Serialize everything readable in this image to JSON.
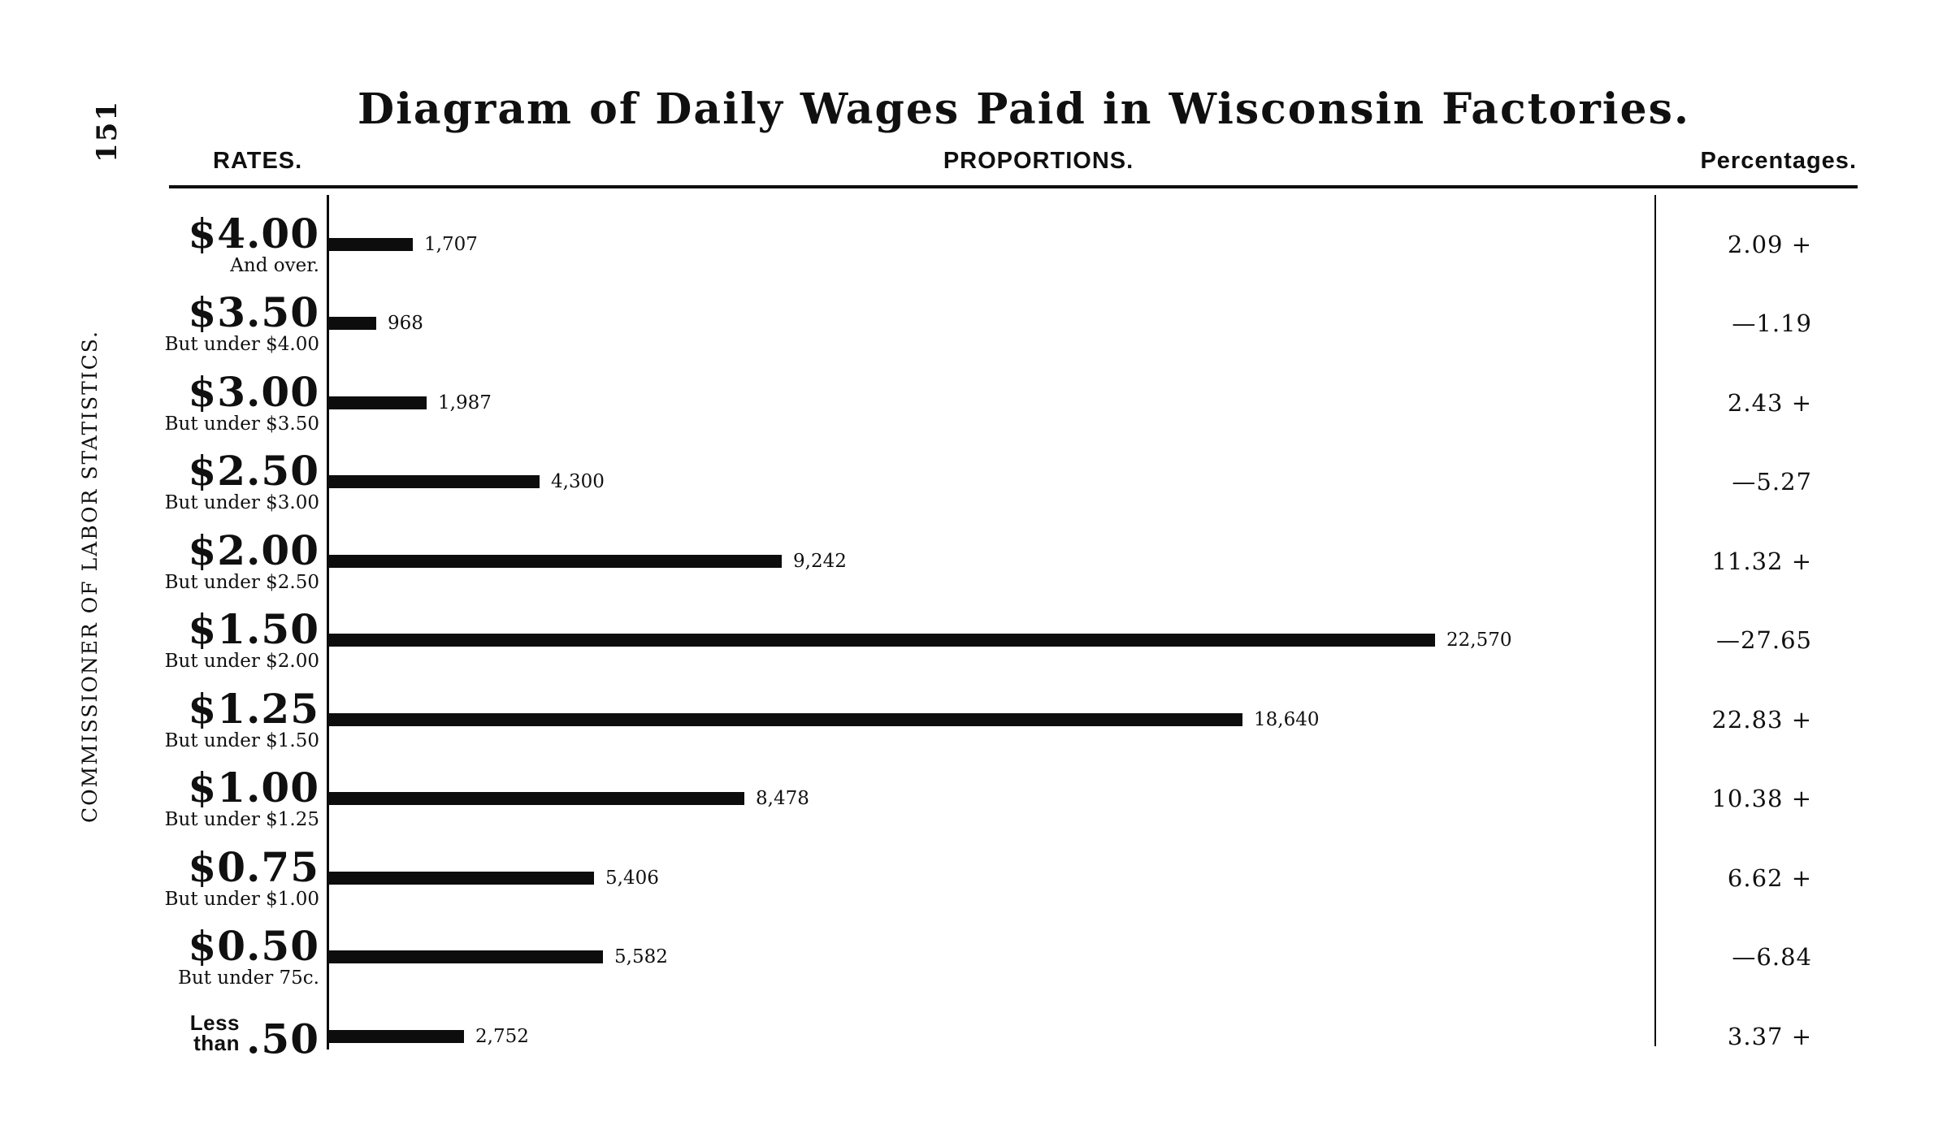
{
  "page": {
    "page_number": "151",
    "sidebar_text": "COMMISSIONER OF LABOR STATISTICS.",
    "title": "Diagram of Daily Wages Paid in Wisconsin Factories.",
    "columns": {
      "rates": "RATES.",
      "proportions": "PROPORTIONS.",
      "percentages": "Percentages."
    }
  },
  "chart_data": {
    "type": "bar",
    "orientation": "horizontal",
    "title": "Diagram of Daily Wages Paid in Wisconsin Factories.",
    "xlabel": "",
    "ylabel": "RATES.",
    "xlim": [
      0,
      23000
    ],
    "legend": "none",
    "grid": false,
    "categories": [
      "$4.00 And over.",
      "$3.50 But under $4.00",
      "$3.00 But under $3.50",
      "$2.50 But under $3.00",
      "$2.00 But under $2.50",
      "$1.50 But under $2.00",
      "$1.25 But under $1.50",
      "$1.00 But under $1.25",
      "$0.75 But under $1.00",
      "$0.50 But under 75c.",
      "Less than .50"
    ],
    "values": [
      1707,
      968,
      1987,
      4300,
      9242,
      22570,
      18640,
      8478,
      5406,
      5582,
      2752
    ],
    "rows": [
      {
        "rate": "$4.00",
        "sub": "And over.",
        "value": 1707,
        "value_label": "1,707",
        "percentage": "2.09 +"
      },
      {
        "rate": "$3.50",
        "sub": "But under $4.00",
        "value": 968,
        "value_label": "968",
        "percentage": "—1.19"
      },
      {
        "rate": "$3.00",
        "sub": "But under $3.50",
        "value": 1987,
        "value_label": "1,987",
        "percentage": "2.43 +"
      },
      {
        "rate": "$2.50",
        "sub": "But under $3.00",
        "value": 4300,
        "value_label": "4,300",
        "percentage": "—5.27"
      },
      {
        "rate": "$2.00",
        "sub": "But under $2.50",
        "value": 9242,
        "value_label": "9,242",
        "percentage": "11.32 +"
      },
      {
        "rate": "$1.50",
        "sub": "But under $2.00",
        "value": 22570,
        "value_label": "22,570",
        "percentage": "—27.65"
      },
      {
        "rate": "$1.25",
        "sub": "But under $1.50",
        "value": 18640,
        "value_label": "18,640",
        "percentage": "22.83 +"
      },
      {
        "rate": "$1.00",
        "sub": "But under $1.25",
        "value": 8478,
        "value_label": "8,478",
        "percentage": "10.38 +"
      },
      {
        "rate": "$0.75",
        "sub": "But under $1.00",
        "value": 5406,
        "value_label": "5,406",
        "percentage": "6.62 +"
      },
      {
        "rate": "$0.50",
        "sub": "But under 75c.",
        "value": 5582,
        "value_label": "5,582",
        "percentage": "—6.84"
      },
      {
        "rate": ".50",
        "sub": "",
        "rate_prefix": "Less than",
        "value": 2752,
        "value_label": "2,752",
        "percentage": "3.37 +"
      }
    ]
  }
}
